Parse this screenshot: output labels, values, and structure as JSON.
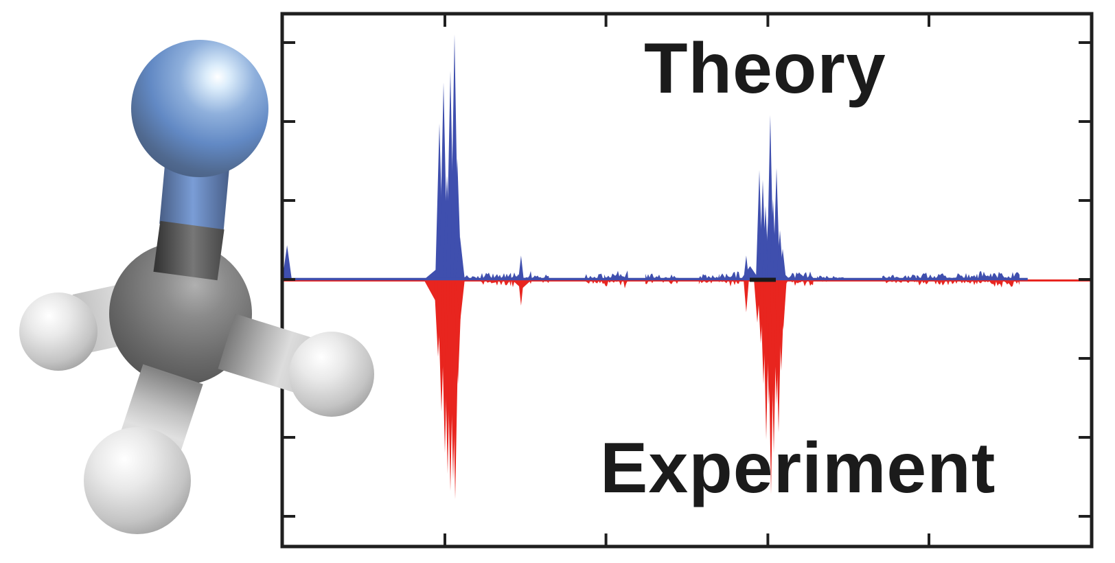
{
  "figure": {
    "background": "#ffffff",
    "molecule": {
      "description": "3D ball-and-stick molecular model: gray carbon center, three light-gray hydrogens, one blue nitrogen atom bonded above",
      "atom_colors": {
        "nitrogen": "#6289c4",
        "carbon": "#6b6b6b",
        "hydrogen": "#c9c9c9"
      },
      "bond_colors": {
        "carbon_nitrogen_upper": "#7a9dd6",
        "carbon_nitrogen_lower": "#5a5a5a",
        "carbon_hydrogen": "#c6c6c6"
      }
    }
  },
  "chart_data": {
    "type": "area",
    "title": "",
    "xlabel": "",
    "ylabel": "",
    "axes_note": "unlabeled spectrum; inward tick marks on all four frame edges, no tick labels",
    "frame_color": "#1f1f1f",
    "series_labels": {
      "theory": "Theory",
      "experiment": "Experiment"
    },
    "series": [
      {
        "name": "Theory",
        "color": "#3f4fae",
        "direction": "up",
        "baseline_end_frac": 0.921,
        "peaks": [
          [
            0.006,
            0.129,
            7
          ],
          [
            0.193,
            0.045,
            22
          ],
          [
            0.1942,
            0.587,
            6
          ],
          [
            0.1993,
            0.742,
            6
          ],
          [
            0.2036,
            0.393,
            6
          ],
          [
            0.2078,
            0.786,
            6
          ],
          [
            0.2129,
            0.923,
            6
          ],
          [
            0.2163,
            0.457,
            6
          ],
          [
            0.2197,
            0.16,
            7
          ],
          [
            0.2951,
            0.09,
            4
          ],
          [
            0.5733,
            0.09,
            4
          ],
          [
            0.578,
            0.05,
            14
          ],
          [
            0.606,
            0.065,
            26
          ],
          [
            0.5895,
            0.411,
            5
          ],
          [
            0.5937,
            0.375,
            5
          ],
          [
            0.5971,
            0.277,
            5
          ],
          [
            0.6005,
            0.238,
            5
          ],
          [
            0.603,
            0.618,
            5
          ],
          [
            0.6064,
            0.302,
            5
          ],
          [
            0.6107,
            0.419,
            5
          ],
          [
            0.6149,
            0.186,
            5
          ],
          [
            0.6183,
            0.116,
            5
          ]
        ],
        "noise_bands": [
          [
            0.2248,
            0.2451,
            4
          ],
          [
            0.2451,
            0.2833,
            7
          ],
          [
            0.2833,
            0.3087,
            9
          ],
          [
            0.3087,
            0.3299,
            4
          ],
          [
            0.374,
            0.3978,
            5
          ],
          [
            0.3978,
            0.4275,
            10
          ],
          [
            0.4487,
            0.4911,
            5
          ],
          [
            0.5148,
            0.5403,
            5
          ],
          [
            0.5403,
            0.5657,
            7
          ],
          [
            0.6251,
            0.6565,
            7
          ],
          [
            0.6607,
            0.6947,
            3
          ],
          [
            0.7413,
            0.7837,
            4
          ],
          [
            0.7837,
            0.86,
            6
          ],
          [
            0.86,
            0.9109,
            8
          ]
        ]
      },
      {
        "name": "Experiment",
        "color": "#e8251f",
        "direction": "down",
        "baseline_end_frac": 0.999,
        "peaks": [
          [
            0.193,
            0.1,
            22
          ],
          [
            0.1925,
            0.29,
            6
          ],
          [
            0.1968,
            0.496,
            6
          ],
          [
            0.201,
            0.65,
            6
          ],
          [
            0.2044,
            0.728,
            6
          ],
          [
            0.2078,
            0.792,
            6
          ],
          [
            0.2112,
            0.753,
            6
          ],
          [
            0.2137,
            0.823,
            6
          ],
          [
            0.2171,
            0.393,
            6
          ],
          [
            0.2197,
            0.162,
            7
          ],
          [
            0.2951,
            0.098,
            4
          ],
          [
            0.296,
            0.035,
            16
          ],
          [
            0.5733,
            0.123,
            4
          ],
          [
            0.604,
            0.12,
            26
          ],
          [
            0.5869,
            0.162,
            5
          ],
          [
            0.5912,
            0.239,
            5
          ],
          [
            0.5946,
            0.393,
            5
          ],
          [
            0.598,
            0.599,
            5
          ],
          [
            0.6013,
            0.47,
            5
          ],
          [
            0.6039,
            0.805,
            5
          ],
          [
            0.6073,
            0.65,
            5
          ],
          [
            0.6107,
            0.47,
            5
          ],
          [
            0.6132,
            0.573,
            5
          ],
          [
            0.6166,
            0.342,
            5
          ],
          [
            0.6191,
            0.188,
            5
          ]
        ],
        "noise_bands": [
          [
            0.2248,
            0.2451,
            3
          ],
          [
            0.2451,
            0.2833,
            6
          ],
          [
            0.2833,
            0.3087,
            7
          ],
          [
            0.3087,
            0.3299,
            3
          ],
          [
            0.374,
            0.3978,
            4
          ],
          [
            0.3978,
            0.4275,
            8
          ],
          [
            0.4487,
            0.4911,
            4
          ],
          [
            0.5148,
            0.5403,
            4
          ],
          [
            0.5403,
            0.5657,
            6
          ],
          [
            0.6251,
            0.6565,
            6
          ],
          [
            0.6607,
            0.6947,
            2
          ],
          [
            0.7413,
            0.7837,
            3
          ],
          [
            0.7837,
            0.86,
            5
          ],
          [
            0.86,
            0.9109,
            7
          ]
        ]
      }
    ],
    "baseline_marker": {
      "x0_frac": 0.5776,
      "x1_frac": 0.6098,
      "color": "#1a1a1a"
    }
  }
}
